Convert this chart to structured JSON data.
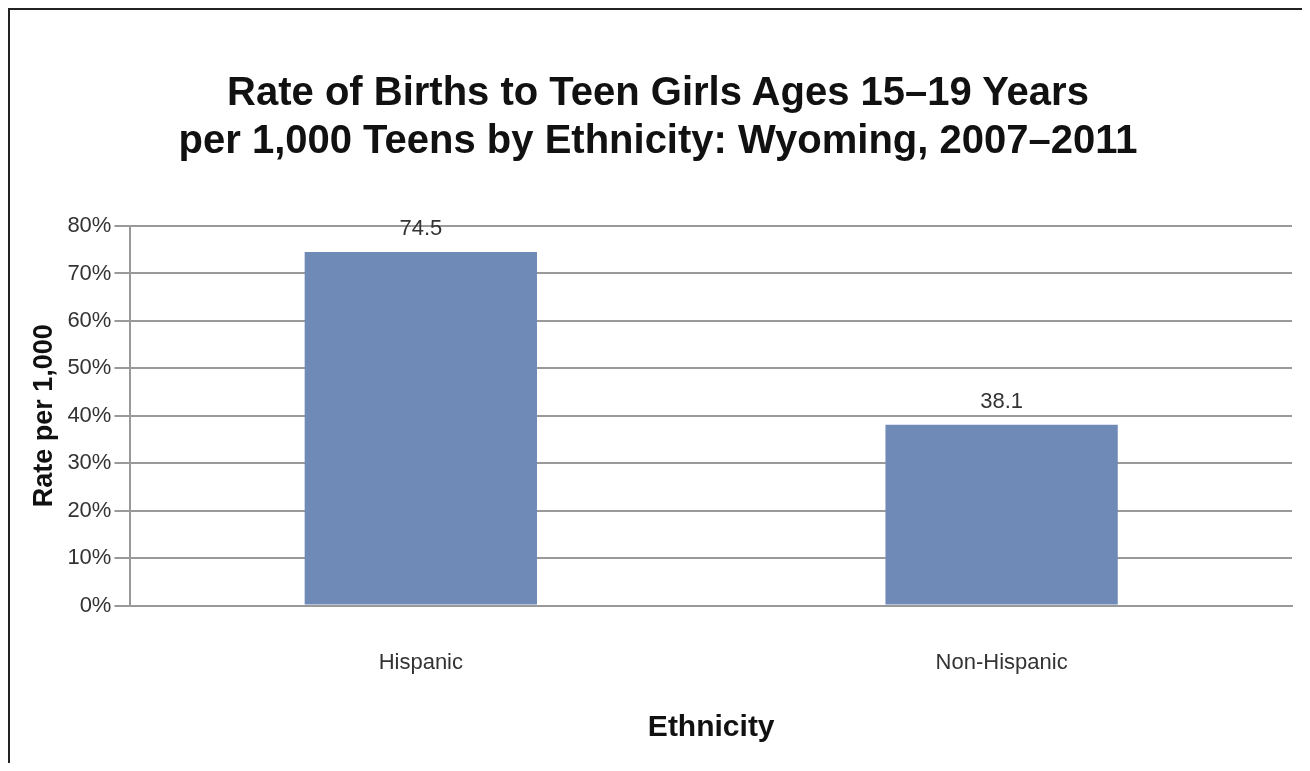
{
  "chart_data": {
    "type": "bar",
    "title": "Rate of Births to Teen Girls Ages 15–19 Years\nper 1,000 Teens by Ethnicity: Wyoming, 2007–2011",
    "xlabel": "Ethnicity",
    "ylabel": "Rate per 1,000",
    "categories": [
      "Hispanic",
      "Non-Hispanic"
    ],
    "values": [
      74.5,
      38.1
    ],
    "color": "#6f8ab7",
    "ylim": [
      0,
      80
    ],
    "yticks": [
      {
        "value": 0,
        "label": "0%"
      },
      {
        "value": 10,
        "label": "10%"
      },
      {
        "value": 20,
        "label": "20%"
      },
      {
        "value": 30,
        "label": "30%"
      },
      {
        "value": 40,
        "label": "40%"
      },
      {
        "value": 50,
        "label": "50%"
      },
      {
        "value": 60,
        "label": "60%"
      },
      {
        "value": 70,
        "label": "70%"
      },
      {
        "value": 80,
        "label": "80%"
      }
    ],
    "grid": "y",
    "data_labels": true,
    "legend": false
  }
}
